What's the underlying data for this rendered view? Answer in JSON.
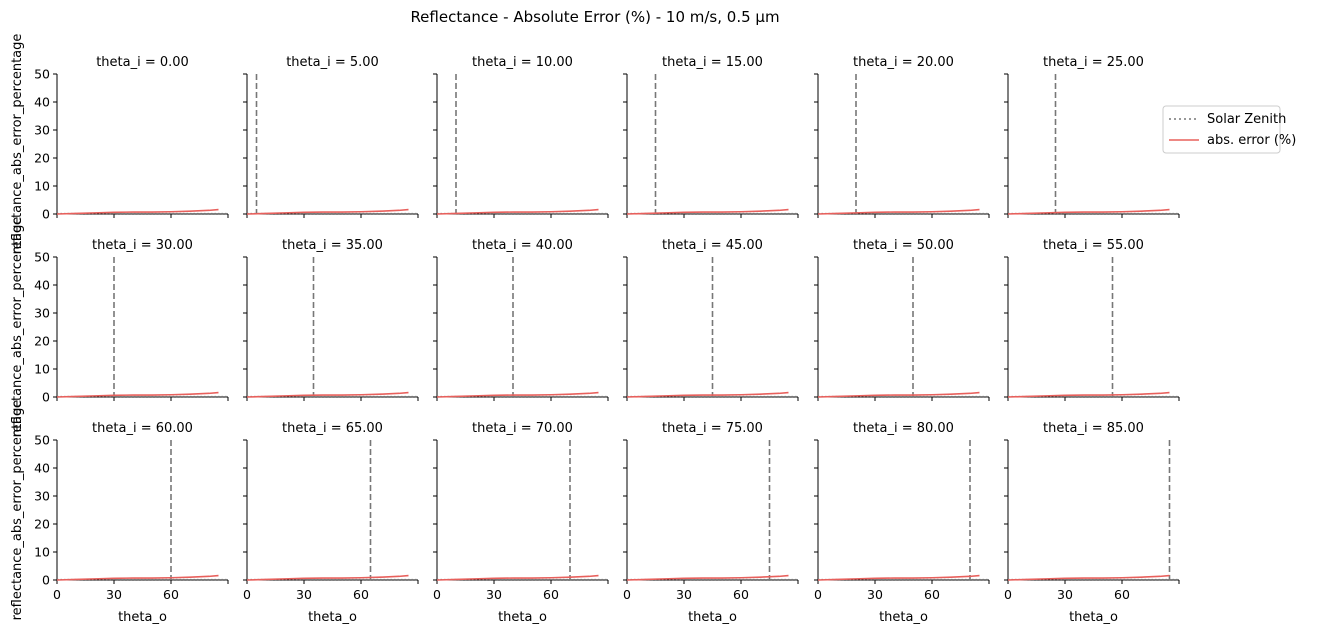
{
  "chart_data": {
    "type": "line",
    "title": "Reflectance - Absolute Error (%) - 10 m/s, 0.5 µm",
    "xlabel": "theta_o",
    "ylabel": "reflectance_abs_error_percentage",
    "xlim": [
      0,
      90
    ],
    "ylim": [
      0,
      50
    ],
    "xticks": [
      0,
      30,
      60
    ],
    "yticks": [
      0,
      10,
      20,
      30,
      40,
      50
    ],
    "grid": false,
    "legend_position": "right",
    "legend": [
      {
        "name": "Solar Zenith",
        "style": "dotted",
        "color": "#777777"
      },
      {
        "name": "abs. error (%)",
        "style": "solid",
        "color": "#e8605c"
      }
    ],
    "panel_title_prefix": "theta_i = ",
    "panels": [
      {
        "title": "theta_i = 0.00",
        "theta_i": 0
      },
      {
        "title": "theta_i = 5.00",
        "theta_i": 5
      },
      {
        "title": "theta_i = 10.00",
        "theta_i": 10
      },
      {
        "title": "theta_i = 15.00",
        "theta_i": 15
      },
      {
        "title": "theta_i = 20.00",
        "theta_i": 20
      },
      {
        "title": "theta_i = 25.00",
        "theta_i": 25
      },
      {
        "title": "theta_i = 30.00",
        "theta_i": 30
      },
      {
        "title": "theta_i = 35.00",
        "theta_i": 35
      },
      {
        "title": "theta_i = 40.00",
        "theta_i": 40
      },
      {
        "title": "theta_i = 45.00",
        "theta_i": 45
      },
      {
        "title": "theta_i = 50.00",
        "theta_i": 50
      },
      {
        "title": "theta_i = 55.00",
        "theta_i": 55
      },
      {
        "title": "theta_i = 60.00",
        "theta_i": 60
      },
      {
        "title": "theta_i = 65.00",
        "theta_i": 65
      },
      {
        "title": "theta_i = 70.00",
        "theta_i": 70
      },
      {
        "title": "theta_i = 75.00",
        "theta_i": 75
      },
      {
        "title": "theta_i = 80.00",
        "theta_i": 80
      },
      {
        "title": "theta_i = 85.00",
        "theta_i": 85
      }
    ],
    "series": [
      {
        "name": "abs. error (%)",
        "x": [
          0,
          10,
          20,
          30,
          40,
          50,
          60,
          70,
          80,
          85
        ],
        "values": [
          0.0,
          0.2,
          0.4,
          0.6,
          0.7,
          0.7,
          0.8,
          1.0,
          1.3,
          1.6
        ]
      }
    ],
    "colors": {
      "error_line": "#e8605c",
      "zenith_line": "#777777",
      "axis": "#000000"
    }
  }
}
